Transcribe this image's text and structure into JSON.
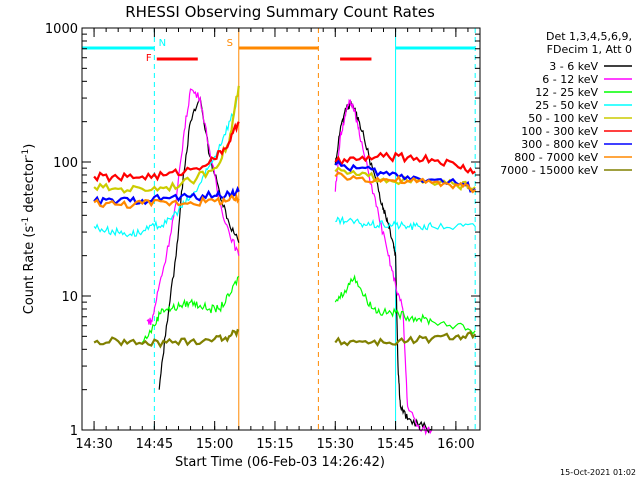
{
  "chart_data": {
    "type": "line",
    "title": "RHESSI Observing Summary Count Rates",
    "xlabel": "Start Time (06-Feb-03 14:26:42)",
    "ylabel_main": "Count Rate (s",
    "ylabel_sup1": "-1",
    "ylabel_mid": " detector",
    "ylabel_sup2": "-1",
    "ylabel_end": ")",
    "y_scale": "log",
    "ylim": [
      1,
      1000
    ],
    "xlim_minutes": [
      14.45,
      16.1
    ],
    "x_ticks": [
      {
        "label": "14:30",
        "value": 14.5
      },
      {
        "label": "14:45",
        "value": 14.75
      },
      {
        "label": "15:00",
        "value": 15.0
      },
      {
        "label": "15:15",
        "value": 15.25
      },
      {
        "label": "15:30",
        "value": 15.5
      },
      {
        "label": "15:45",
        "value": 15.75
      },
      {
        "label": "16:00",
        "value": 16.0
      }
    ],
    "y_ticks": [
      {
        "label": "1",
        "value": 1
      },
      {
        "label": "10",
        "value": 10
      },
      {
        "label": "100",
        "value": 100
      },
      {
        "label": "1000",
        "value": 1000
      }
    ],
    "legend_header": [
      "Det 1,3,4,5,6,9,",
      "FDecim 1, Att 0"
    ],
    "legend_placement": "right",
    "series": [
      {
        "name": "3 - 6 keV",
        "color": "#000000",
        "x": [
          14.45,
          14.6,
          14.7,
          14.75,
          14.77,
          14.8,
          14.84,
          14.87,
          14.9,
          14.94,
          14.98,
          15.02,
          15.06,
          15.1,
          15.12,
          15.45,
          15.5,
          15.52,
          15.54,
          15.56,
          15.58,
          15.6,
          15.64,
          15.68,
          15.7,
          15.72,
          15.74,
          15.75,
          15.76,
          15.77,
          15.8,
          15.85,
          15.9,
          16.1
        ],
        "y": [
          null,
          null,
          null,
          null,
          2,
          6,
          20,
          80,
          200,
          300,
          110,
          60,
          35,
          25,
          null,
          null,
          95,
          170,
          240,
          270,
          250,
          200,
          110,
          60,
          45,
          35,
          25,
          20,
          3,
          1.5,
          1.2,
          1.1,
          1,
          null
        ]
      },
      {
        "name": "6 - 12 keV",
        "color": "#ff00ff",
        "x": [
          14.45,
          14.7,
          14.72,
          14.74,
          14.77,
          14.8,
          14.84,
          14.87,
          14.9,
          14.94,
          14.98,
          15.02,
          15.06,
          15.1,
          15.12,
          15.45,
          15.5,
          15.52,
          15.54,
          15.56,
          15.58,
          15.6,
          15.64,
          15.68,
          15.72,
          15.75,
          15.78,
          15.8,
          15.85,
          15.9,
          16.1
        ],
        "y": [
          null,
          null,
          6.5,
          6.5,
          12,
          20,
          50,
          150,
          350,
          300,
          120,
          50,
          30,
          20,
          null,
          null,
          60,
          150,
          220,
          280,
          250,
          160,
          80,
          40,
          20,
          12,
          8,
          1.5,
          1,
          1,
          null
        ]
      },
      {
        "name": "12 - 25 keV",
        "color": "#00ff00",
        "x": [
          14.45,
          14.6,
          14.7,
          14.75,
          14.78,
          14.82,
          14.86,
          14.9,
          14.94,
          14.98,
          15.02,
          15.06,
          15.1,
          15.12,
          15.45,
          15.5,
          15.54,
          15.58,
          15.62,
          15.66,
          15.7,
          15.75,
          15.8,
          15.85,
          15.9,
          16.0,
          16.08,
          16.1
        ],
        "y": [
          null,
          null,
          4.5,
          6,
          8,
          8,
          8.5,
          9,
          8.5,
          8,
          8,
          10,
          14,
          null,
          null,
          9,
          11,
          14,
          10,
          8,
          7.5,
          7.5,
          7,
          6.8,
          6.5,
          6,
          5.5,
          null
        ]
      },
      {
        "name": "25 - 50 keV",
        "color": "#00ffff",
        "x": [
          14.45,
          14.5,
          14.55,
          14.6,
          14.65,
          14.7,
          14.75,
          14.8,
          14.84,
          14.88,
          14.92,
          14.96,
          15.0,
          15.04,
          15.08,
          15.1,
          15.12,
          15.45,
          15.5,
          15.54,
          15.6,
          15.65,
          15.7,
          15.75,
          15.8,
          15.85,
          15.9,
          16.0,
          16.08,
          16.1
        ],
        "y": [
          null,
          33,
          31,
          30,
          29,
          30,
          33,
          35,
          42,
          50,
          60,
          80,
          110,
          160,
          240,
          330,
          null,
          null,
          36,
          36,
          35,
          34,
          34,
          34,
          33,
          33,
          33,
          33,
          33,
          null
        ]
      },
      {
        "name": "50 - 100 keV",
        "color": "#cccc00",
        "x": [
          14.45,
          14.5,
          14.6,
          14.7,
          14.8,
          14.9,
          15.0,
          15.06,
          15.1,
          15.12,
          15.45,
          15.5,
          15.6,
          15.7,
          15.8,
          15.9,
          16.0,
          16.08,
          16.1
        ],
        "y": [
          null,
          65,
          63,
          63,
          65,
          72,
          90,
          140,
          370,
          null,
          null,
          85,
          80,
          75,
          72,
          70,
          68,
          65,
          null
        ]
      },
      {
        "name": "100 - 300 keV",
        "color": "#ff0000",
        "x": [
          14.45,
          14.5,
          14.6,
          14.7,
          14.8,
          14.9,
          15.0,
          15.06,
          15.1,
          15.12,
          15.45,
          15.5,
          15.6,
          15.7,
          15.8,
          15.9,
          16.0,
          16.08,
          16.1
        ],
        "y": [
          null,
          78,
          76,
          78,
          80,
          88,
          105,
          140,
          200,
          null,
          null,
          100,
          105,
          110,
          108,
          105,
          95,
          85,
          null
        ]
      },
      {
        "name": "300 - 800 keV",
        "color": "#0000ff",
        "x": [
          14.45,
          14.5,
          14.6,
          14.7,
          14.8,
          14.9,
          15.0,
          15.06,
          15.1,
          15.12,
          15.45,
          15.5,
          15.6,
          15.7,
          15.8,
          15.9,
          16.0,
          16.08,
          16.1
        ],
        "y": [
          null,
          51,
          51,
          52,
          54,
          55,
          56,
          58,
          60,
          null,
          null,
          95,
          90,
          82,
          78,
          74,
          70,
          63,
          null
        ]
      },
      {
        "name": "800 - 7000 keV",
        "color": "#ff8800",
        "x": [
          14.45,
          14.5,
          14.6,
          14.7,
          14.8,
          14.9,
          15.0,
          15.06,
          15.1,
          15.12,
          15.45,
          15.5,
          15.6,
          15.7,
          15.8,
          15.9,
          16.0,
          16.08,
          16.1
        ],
        "y": [
          null,
          50,
          48,
          49,
          50,
          50,
          51,
          52,
          53,
          null,
          null,
          78,
          76,
          74,
          72,
          70,
          68,
          62,
          null
        ]
      },
      {
        "name": "7000 - 15000 keV",
        "color": "#808000",
        "x": [
          14.45,
          14.5,
          14.6,
          14.7,
          14.8,
          14.9,
          15.0,
          15.06,
          15.1,
          15.12,
          15.45,
          15.5,
          15.6,
          15.7,
          15.8,
          15.9,
          16.0,
          16.08,
          16.1
        ],
        "y": [
          null,
          4.5,
          4.6,
          4.4,
          4.5,
          4.6,
          4.8,
          5,
          5.5,
          null,
          null,
          4.5,
          4.6,
          4.5,
          4.6,
          4.8,
          5,
          5.2,
          null
        ]
      }
    ],
    "flag_bars": [
      {
        "label": "N",
        "color": "#00ffff",
        "segments": [
          [
            14.45,
            14.75
          ],
          [
            15.75,
            16.08
          ]
        ],
        "level": "top"
      },
      {
        "label": "F",
        "color": "#ff0000",
        "segments": [
          [
            14.76,
            14.93
          ],
          [
            15.52,
            15.65
          ]
        ],
        "level": "second"
      },
      {
        "label": "S",
        "color": "#ff8800",
        "segments": [
          [
            15.1,
            15.43
          ]
        ],
        "level": "top"
      }
    ],
    "vertical_lines": [
      {
        "value": 14.75,
        "color": "#00ffff",
        "style": "dashed"
      },
      {
        "value": 15.75,
        "color": "#00ffff",
        "style": "solid"
      },
      {
        "value": 16.08,
        "color": "#00ffff",
        "style": "dashed"
      },
      {
        "value": 15.1,
        "color": "#ff8800",
        "style": "solid"
      },
      {
        "value": 15.43,
        "color": "#ff8800",
        "style": "dashed"
      }
    ]
  },
  "footer_timestamp": "15-Oct-2021 01:02"
}
